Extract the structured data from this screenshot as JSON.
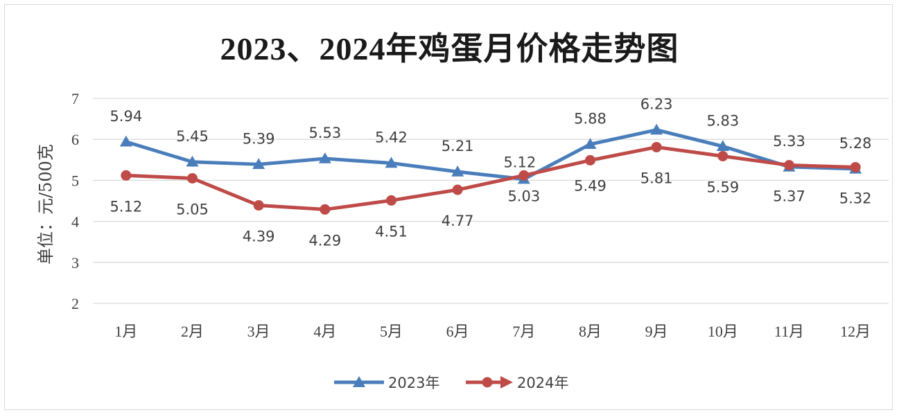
{
  "chart_data": {
    "type": "line",
    "title": "2023、2024年鸡蛋月价格走势图",
    "ylabel": "单位：元/500克",
    "xlabel": "",
    "categories": [
      "1月",
      "2月",
      "3月",
      "4月",
      "5月",
      "6月",
      "7月",
      "8月",
      "9月",
      "10月",
      "11月",
      "12月"
    ],
    "yticks": [
      "2",
      "3",
      "4",
      "5",
      "6",
      "7"
    ],
    "ylim": [
      2,
      7
    ],
    "grid": true,
    "legend_position": "bottom",
    "series": [
      {
        "name": "2023年",
        "values": [
          5.94,
          5.45,
          5.39,
          5.53,
          5.42,
          5.21,
          5.03,
          5.88,
          6.23,
          5.83,
          5.33,
          5.28
        ],
        "value_labels": [
          "5.94",
          "5.45",
          "5.39",
          "5.53",
          "5.42",
          "5.21",
          "5.03",
          "5.88",
          "6.23",
          "5.83",
          "5.33",
          "5.28"
        ],
        "color": "#4a7ebb",
        "marker": "triangle"
      },
      {
        "name": "2024年",
        "values": [
          5.12,
          5.05,
          4.39,
          4.29,
          4.51,
          4.77,
          5.12,
          5.49,
          5.81,
          5.59,
          5.37,
          5.32
        ],
        "value_labels": [
          "5.12",
          "5.05",
          "4.39",
          "4.29",
          "4.51",
          "4.77",
          "5.12",
          "5.49",
          "5.81",
          "5.59",
          "5.37",
          "5.32"
        ],
        "color": "#be4b48",
        "marker": "circle"
      }
    ]
  }
}
